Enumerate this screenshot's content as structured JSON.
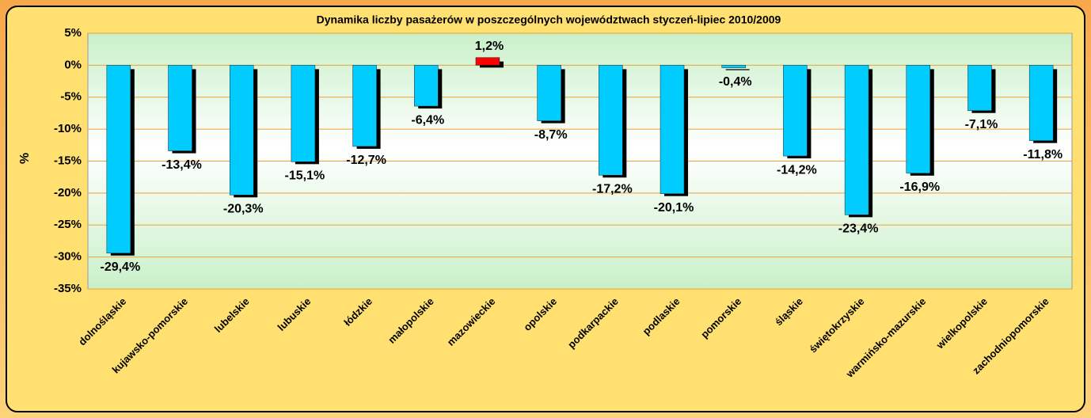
{
  "chart_data": {
    "type": "bar",
    "title": "Dynamika liczby pasażerów w poszczególnych województwach styczeń-lipiec 2010/2009",
    "y_label": "%",
    "categories": [
      "dolnośląskie",
      "kujawsko-pomorskie",
      "lubelskie",
      "lubuskie",
      "łódzkie",
      "małopolskie",
      "mazowieckie",
      "opolskie",
      "podkarpackie",
      "podlaskie",
      "pomorskie",
      "śląskie",
      "świętokrzyskie",
      "warmińsko-mazurskie",
      "wielkopolskie",
      "zachodniopomorskie"
    ],
    "values": [
      -29.4,
      -13.4,
      -20.3,
      -15.1,
      -12.7,
      -6.4,
      1.2,
      -8.7,
      -17.2,
      -20.1,
      -0.4,
      -14.2,
      -23.4,
      -16.9,
      -7.1,
      -11.8
    ],
    "value_labels": [
      "-29,4%",
      "-13,4%",
      "-20,3%",
      "-15,1%",
      "-12,7%",
      "-6,4%",
      "1,2%",
      "-8,7%",
      "-17,2%",
      "-20,1%",
      "-0,4%",
      "-14,2%",
      "-23,4%",
      "-16,9%",
      "-7,1%",
      "-11,8%"
    ],
    "colors": [
      "#00ccff",
      "#00ccff",
      "#00ccff",
      "#00ccff",
      "#00ccff",
      "#00ccff",
      "#ff0000",
      "#00ccff",
      "#00ccff",
      "#00ccff",
      "#00ccff",
      "#00ccff",
      "#00ccff",
      "#00ccff",
      "#00ccff",
      "#00ccff"
    ],
    "ylim": [
      -35,
      5
    ],
    "yticks": [
      {
        "value": 5,
        "label": "5%"
      },
      {
        "value": 0,
        "label": "0%"
      },
      {
        "value": -5,
        "label": "-5%"
      },
      {
        "value": -10,
        "label": "-10%"
      },
      {
        "value": -15,
        "label": "-15%"
      },
      {
        "value": -20,
        "label": "-20%"
      },
      {
        "value": -25,
        "label": "-25%"
      },
      {
        "value": -30,
        "label": "-30%"
      },
      {
        "value": -35,
        "label": "-35%"
      }
    ],
    "grid": true
  }
}
